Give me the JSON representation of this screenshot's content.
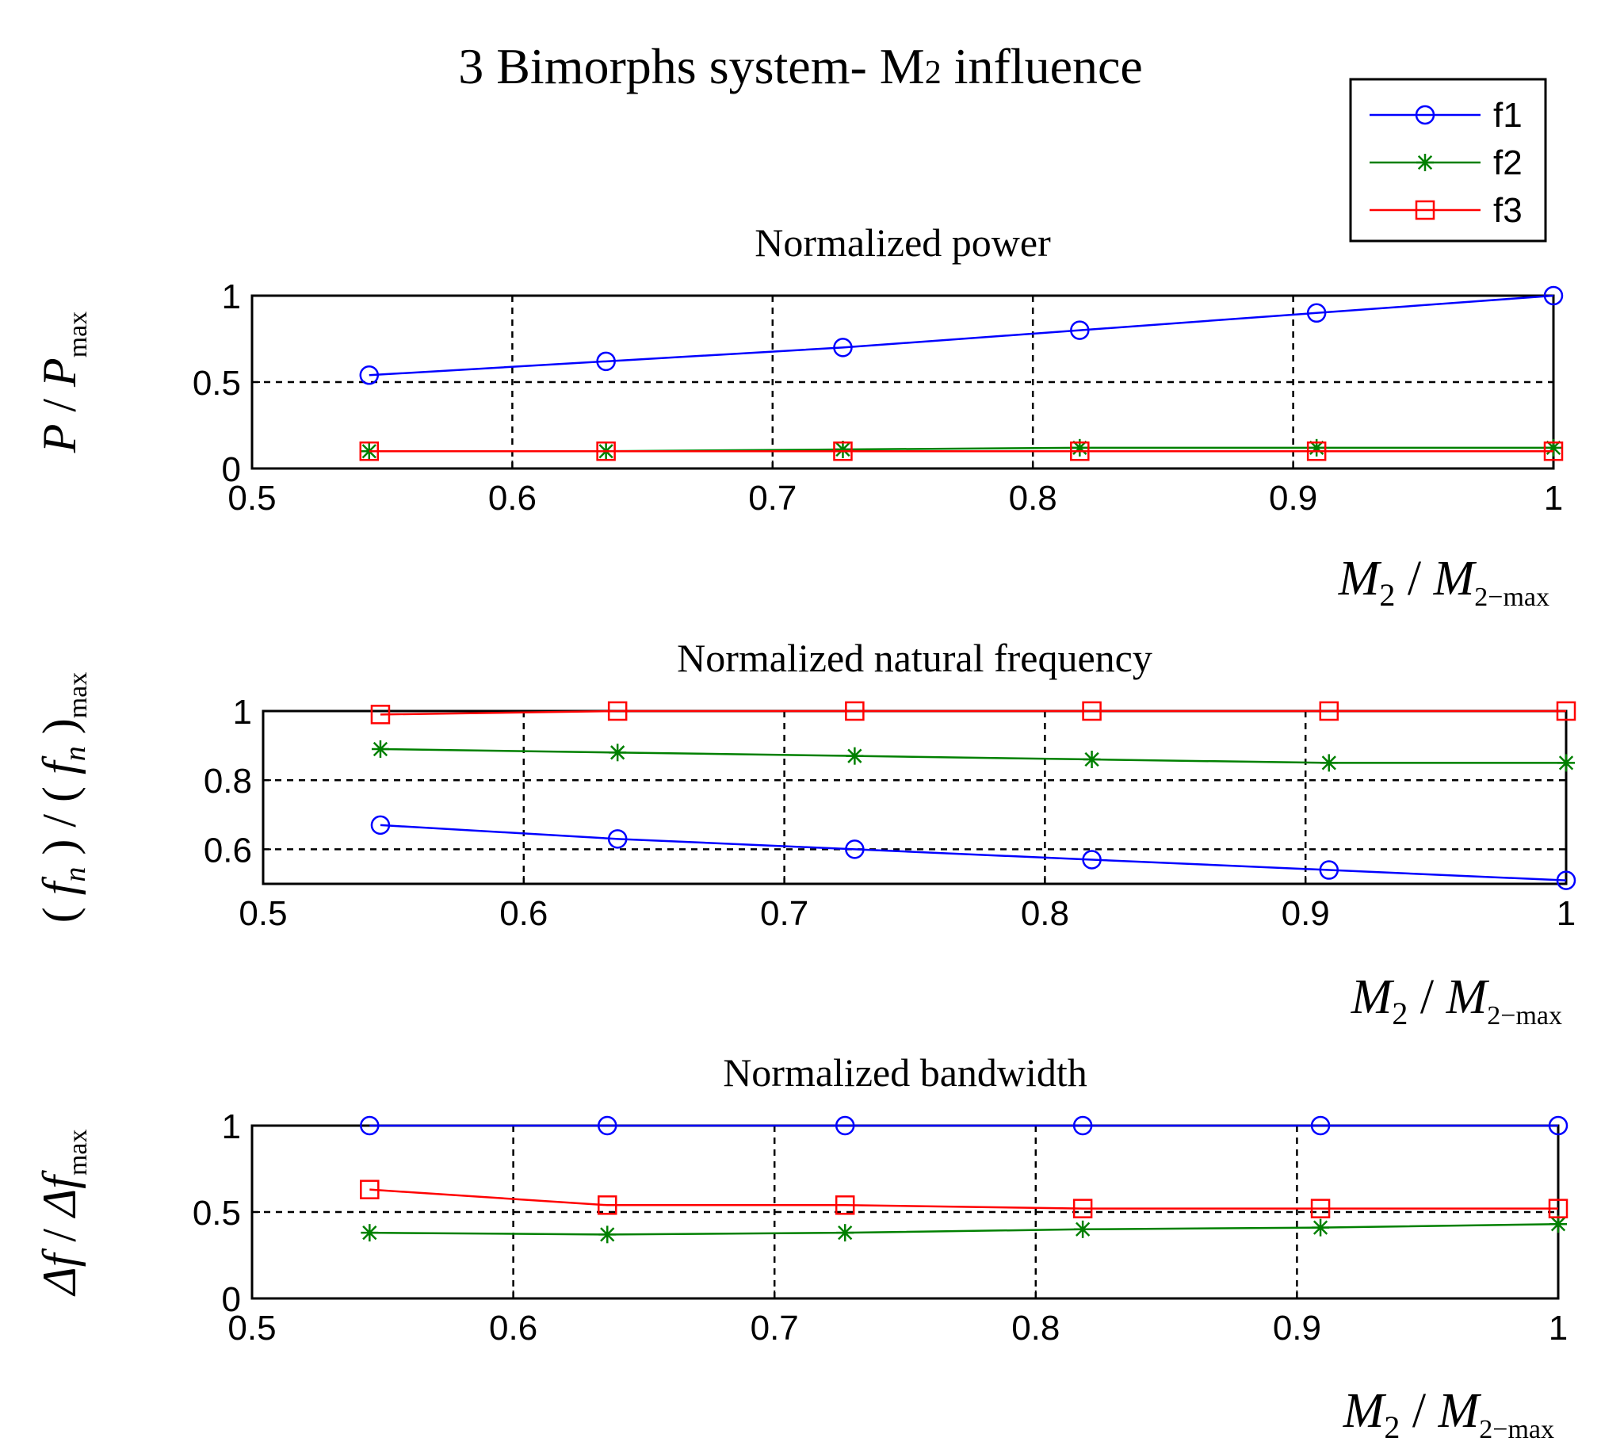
{
  "figure": {
    "title_main": "3  Bimorphs system- ",
    "title_sym": "M",
    "title_sub": "2",
    "title_tail": " influence"
  },
  "legend": {
    "position": "top-right",
    "entries": [
      {
        "label": "f1",
        "color": "#0000ff",
        "marker": "circle"
      },
      {
        "label": "f2",
        "color": "#008000",
        "marker": "star"
      },
      {
        "label": "f3",
        "color": "#ff0000",
        "marker": "square"
      }
    ]
  },
  "xlabel": {
    "sym1": "M",
    "sub1": "2",
    "slash": " / ",
    "sym2": "M",
    "sub2": "2−max"
  },
  "chart_data": [
    {
      "type": "line",
      "title": "Normalized power",
      "ylabel": {
        "a": "P",
        "slash": " / ",
        "b": "P",
        "sub": "max"
      },
      "x": [
        0.545,
        0.636,
        0.727,
        0.818,
        0.909,
        1.0
      ],
      "xlim": [
        0.5,
        1.0
      ],
      "ylim": [
        0,
        1
      ],
      "xticks": [
        "0.5",
        "0.6",
        "0.7",
        "0.8",
        "0.9",
        "1"
      ],
      "yticks": [
        {
          "v": 0,
          "t": "0"
        },
        {
          "v": 0.5,
          "t": "0.5"
        },
        {
          "v": 1,
          "t": "1"
        }
      ],
      "grid": true,
      "series": [
        {
          "name": "f1",
          "values": [
            0.54,
            0.62,
            0.7,
            0.8,
            0.9,
            1.0
          ]
        },
        {
          "name": "f2",
          "values": [
            0.1,
            0.1,
            0.11,
            0.12,
            0.12,
            0.12
          ]
        },
        {
          "name": "f3",
          "values": [
            0.1,
            0.1,
            0.1,
            0.1,
            0.1,
            0.1
          ]
        }
      ]
    },
    {
      "type": "line",
      "title": "Normalized natural frequency",
      "ylabel": {
        "open1": "( ",
        "f1": "f",
        "n1": "n",
        "mid": " ) / ( ",
        "f2": "f",
        "n2": "n",
        "close": " )",
        "sub": "max"
      },
      "x": [
        0.545,
        0.636,
        0.727,
        0.818,
        0.909,
        1.0
      ],
      "xlim": [
        0.5,
        1.0
      ],
      "ylim": [
        0.5,
        1
      ],
      "xticks": [
        "0.5",
        "0.6",
        "0.7",
        "0.8",
        "0.9",
        "1"
      ],
      "yticks": [
        {
          "v": 0.6,
          "t": "0.6"
        },
        {
          "v": 0.8,
          "t": "0.8"
        },
        {
          "v": 1,
          "t": "1"
        }
      ],
      "grid": true,
      "series": [
        {
          "name": "f1",
          "values": [
            0.67,
            0.63,
            0.6,
            0.57,
            0.54,
            0.51
          ]
        },
        {
          "name": "f2",
          "values": [
            0.89,
            0.88,
            0.87,
            0.86,
            0.85,
            0.85
          ]
        },
        {
          "name": "f3",
          "values": [
            0.99,
            1.0,
            1.0,
            1.0,
            1.0,
            1.0
          ]
        }
      ]
    },
    {
      "type": "line",
      "title": "Normalized bandwidth",
      "ylabel": {
        "a": "Δf",
        "slash": " / ",
        "b": "Δf",
        "sub": "max"
      },
      "x": [
        0.545,
        0.636,
        0.727,
        0.818,
        0.909,
        1.0
      ],
      "xlim": [
        0.5,
        1.0
      ],
      "ylim": [
        0,
        1
      ],
      "xticks": [
        "0.5",
        "0.6",
        "0.7",
        "0.8",
        "0.9",
        "1"
      ],
      "yticks": [
        {
          "v": 0,
          "t": "0"
        },
        {
          "v": 0.5,
          "t": "0.5"
        },
        {
          "v": 1,
          "t": "1"
        }
      ],
      "grid": true,
      "series": [
        {
          "name": "f1",
          "values": [
            1.0,
            1.0,
            1.0,
            1.0,
            1.0,
            1.0
          ]
        },
        {
          "name": "f2",
          "values": [
            0.38,
            0.37,
            0.38,
            0.4,
            0.41,
            0.43
          ]
        },
        {
          "name": "f3",
          "values": [
            0.63,
            0.54,
            0.54,
            0.52,
            0.52,
            0.52
          ]
        }
      ]
    }
  ]
}
